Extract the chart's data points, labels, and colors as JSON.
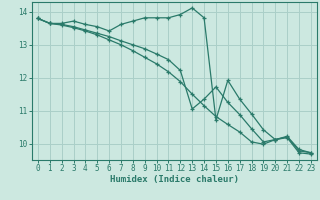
{
  "title": "",
  "xlabel": "Humidex (Indice chaleur)",
  "ylabel": "",
  "background_color": "#cce8e0",
  "grid_color": "#aacfc8",
  "line_color": "#2a7a6a",
  "xlim": [
    -0.5,
    23.5
  ],
  "ylim": [
    9.5,
    14.3
  ],
  "yticks": [
    10,
    11,
    12,
    13,
    14
  ],
  "xticks": [
    0,
    1,
    2,
    3,
    4,
    5,
    6,
    7,
    8,
    9,
    10,
    11,
    12,
    13,
    14,
    15,
    16,
    17,
    18,
    19,
    20,
    21,
    22,
    23
  ],
  "series": [
    {
      "x": [
        0,
        1,
        2,
        3,
        4,
        5,
        6,
        7,
        8,
        9,
        10,
        11,
        12,
        13,
        14,
        15,
        16,
        17,
        18,
        19,
        20,
        21,
        22,
        23
      ],
      "y": [
        13.8,
        13.65,
        13.65,
        13.72,
        13.62,
        13.55,
        13.42,
        13.62,
        13.72,
        13.82,
        13.82,
        13.82,
        13.92,
        14.12,
        13.82,
        10.72,
        11.92,
        11.35,
        10.9,
        10.42,
        10.12,
        10.22,
        9.82,
        9.72
      ]
    },
    {
      "x": [
        0,
        1,
        2,
        3,
        4,
        5,
        6,
        7,
        8,
        9,
        10,
        11,
        12,
        13,
        14,
        15,
        16,
        17,
        18,
        19,
        20,
        21,
        22,
        23
      ],
      "y": [
        13.8,
        13.65,
        13.62,
        13.55,
        13.45,
        13.35,
        13.25,
        13.12,
        13.0,
        12.88,
        12.72,
        12.55,
        12.22,
        11.05,
        11.35,
        11.72,
        11.25,
        10.88,
        10.45,
        10.05,
        10.12,
        10.2,
        9.78,
        9.72
      ]
    },
    {
      "x": [
        0,
        1,
        2,
        3,
        4,
        5,
        6,
        7,
        8,
        9,
        10,
        11,
        12,
        13,
        14,
        15,
        16,
        17,
        18,
        19,
        20,
        21,
        22,
        23
      ],
      "y": [
        13.8,
        13.65,
        13.6,
        13.52,
        13.42,
        13.3,
        13.15,
        13.0,
        12.82,
        12.62,
        12.42,
        12.18,
        11.88,
        11.5,
        11.15,
        10.82,
        10.58,
        10.35,
        10.05,
        9.98,
        10.12,
        10.18,
        9.72,
        9.68
      ]
    }
  ]
}
